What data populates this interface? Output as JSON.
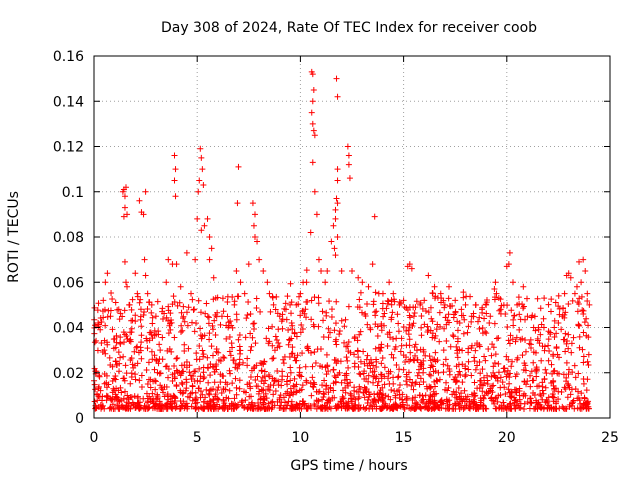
{
  "chart_data": {
    "type": "scatter",
    "title": "Day 308 of 2024, Rate Of TEC Index for receiver coob",
    "xlabel": "GPS time / hours",
    "ylabel": "ROTI / TECUs",
    "xlim": [
      0,
      25
    ],
    "ylim": [
      0,
      0.16
    ],
    "xticks": [
      0,
      5,
      10,
      15,
      20,
      25
    ],
    "xtick_labels": [
      "0",
      "5",
      "10",
      "15",
      "20",
      "25"
    ],
    "yticks": [
      0,
      0.02,
      0.04,
      0.06,
      0.08,
      0.1,
      0.12,
      0.14,
      0.16
    ],
    "ytick_labels": [
      "0",
      "0.02",
      "0.04",
      "0.06",
      "0.08",
      "0.1",
      "0.12",
      "0.14",
      "0.16"
    ],
    "grid": true,
    "marker": "plus",
    "color": "#ff0000",
    "series": [
      {
        "name": "ROTI",
        "points": [
          [
            0.05,
            0.041
          ],
          [
            0.2,
            0.042
          ],
          [
            0.3,
            0.039
          ],
          [
            0.45,
            0.052
          ],
          [
            0.55,
            0.06
          ],
          [
            0.65,
            0.064
          ],
          [
            0.5,
            0.03
          ],
          [
            0.8,
            0.045
          ],
          [
            1.0,
            0.035
          ],
          [
            1.2,
            0.048
          ],
          [
            1.4,
            0.1
          ],
          [
            1.45,
            0.101
          ],
          [
            1.5,
            0.098
          ],
          [
            1.55,
            0.102
          ],
          [
            1.5,
            0.093
          ],
          [
            1.45,
            0.089
          ],
          [
            1.6,
            0.09
          ],
          [
            1.5,
            0.069
          ],
          [
            1.55,
            0.06
          ],
          [
            1.6,
            0.058
          ],
          [
            1.7,
            0.05
          ],
          [
            1.8,
            0.043
          ],
          [
            2.0,
            0.064
          ],
          [
            2.1,
            0.055
          ],
          [
            2.2,
            0.096
          ],
          [
            2.3,
            0.091
          ],
          [
            2.4,
            0.09
          ],
          [
            2.5,
            0.1
          ],
          [
            2.45,
            0.07
          ],
          [
            2.5,
            0.063
          ],
          [
            2.6,
            0.055
          ],
          [
            2.8,
            0.05
          ],
          [
            3.0,
            0.045
          ],
          [
            3.3,
            0.047
          ],
          [
            3.5,
            0.06
          ],
          [
            3.6,
            0.07
          ],
          [
            3.8,
            0.068
          ],
          [
            3.9,
            0.116
          ],
          [
            3.95,
            0.11
          ],
          [
            3.9,
            0.105
          ],
          [
            3.95,
            0.098
          ],
          [
            4.0,
            0.068
          ],
          [
            4.2,
            0.058
          ],
          [
            4.5,
            0.073
          ],
          [
            4.7,
            0.055
          ],
          [
            4.9,
            0.07
          ],
          [
            5.0,
            0.088
          ],
          [
            5.05,
            0.1
          ],
          [
            5.1,
            0.105
          ],
          [
            5.15,
            0.119
          ],
          [
            5.2,
            0.115
          ],
          [
            5.25,
            0.11
          ],
          [
            5.3,
            0.103
          ],
          [
            5.2,
            0.083
          ],
          [
            5.35,
            0.085
          ],
          [
            5.5,
            0.088
          ],
          [
            5.6,
            0.08
          ],
          [
            5.7,
            0.075
          ],
          [
            5.6,
            0.07
          ],
          [
            5.8,
            0.062
          ],
          [
            5.9,
            0.053
          ],
          [
            6.2,
            0.045
          ],
          [
            6.5,
            0.04
          ],
          [
            6.8,
            0.05
          ],
          [
            6.9,
            0.065
          ],
          [
            6.95,
            0.095
          ],
          [
            7.0,
            0.111
          ],
          [
            7.1,
            0.06
          ],
          [
            7.3,
            0.055
          ],
          [
            7.5,
            0.068
          ],
          [
            7.7,
            0.095
          ],
          [
            7.8,
            0.09
          ],
          [
            7.75,
            0.085
          ],
          [
            7.8,
            0.08
          ],
          [
            7.9,
            0.078
          ],
          [
            8.0,
            0.07
          ],
          [
            8.2,
            0.065
          ],
          [
            8.4,
            0.06
          ],
          [
            8.5,
            0.055
          ],
          [
            8.7,
            0.05
          ],
          [
            9.0,
            0.045
          ],
          [
            9.3,
            0.048
          ],
          [
            9.5,
            0.05
          ],
          [
            9.8,
            0.05
          ],
          [
            10.0,
            0.055
          ],
          [
            10.3,
            0.06
          ],
          [
            10.5,
            0.082
          ],
          [
            10.55,
            0.153
          ],
          [
            10.6,
            0.152
          ],
          [
            10.65,
            0.145
          ],
          [
            10.6,
            0.14
          ],
          [
            10.55,
            0.135
          ],
          [
            10.6,
            0.13
          ],
          [
            10.65,
            0.127
          ],
          [
            10.7,
            0.125
          ],
          [
            10.6,
            0.113
          ],
          [
            10.7,
            0.1
          ],
          [
            10.8,
            0.09
          ],
          [
            10.9,
            0.07
          ],
          [
            11.0,
            0.065
          ],
          [
            11.2,
            0.06
          ],
          [
            11.3,
            0.065
          ],
          [
            11.5,
            0.078
          ],
          [
            11.6,
            0.085
          ],
          [
            11.7,
            0.092
          ],
          [
            11.75,
            0.097
          ],
          [
            11.8,
            0.095
          ],
          [
            11.7,
            0.088
          ],
          [
            11.8,
            0.08
          ],
          [
            11.65,
            0.075
          ],
          [
            11.7,
            0.072
          ],
          [
            11.75,
            0.15
          ],
          [
            11.8,
            0.142
          ],
          [
            11.8,
            0.11
          ],
          [
            11.8,
            0.105
          ],
          [
            12.0,
            0.065
          ],
          [
            12.3,
            0.12
          ],
          [
            12.35,
            0.116
          ],
          [
            12.35,
            0.112
          ],
          [
            12.4,
            0.106
          ],
          [
            12.5,
            0.065
          ],
          [
            12.8,
            0.062
          ],
          [
            13.0,
            0.06
          ],
          [
            13.3,
            0.058
          ],
          [
            13.5,
            0.068
          ],
          [
            13.6,
            0.089
          ],
          [
            13.8,
            0.055
          ],
          [
            14.0,
            0.055
          ],
          [
            14.3,
            0.06
          ],
          [
            14.5,
            0.055
          ],
          [
            14.8,
            0.05
          ],
          [
            15.0,
            0.052
          ],
          [
            15.2,
            0.067
          ],
          [
            15.3,
            0.068
          ],
          [
            15.4,
            0.066
          ],
          [
            15.5,
            0.045
          ],
          [
            15.8,
            0.05
          ],
          [
            16.0,
            0.052
          ],
          [
            16.2,
            0.063
          ],
          [
            16.5,
            0.058
          ],
          [
            16.8,
            0.055
          ],
          [
            17.0,
            0.05
          ],
          [
            17.2,
            0.058
          ],
          [
            17.5,
            0.052
          ],
          [
            17.8,
            0.048
          ],
          [
            18.0,
            0.05
          ],
          [
            18.3,
            0.045
          ],
          [
            18.5,
            0.05
          ],
          [
            18.8,
            0.048
          ],
          [
            19.0,
            0.05
          ],
          [
            19.2,
            0.045
          ],
          [
            19.4,
            0.057
          ],
          [
            19.45,
            0.06
          ],
          [
            19.5,
            0.055
          ],
          [
            19.7,
            0.048
          ],
          [
            20.0,
            0.067
          ],
          [
            20.1,
            0.068
          ],
          [
            20.15,
            0.073
          ],
          [
            20.3,
            0.06
          ],
          [
            20.5,
            0.05
          ],
          [
            20.8,
            0.058
          ],
          [
            21.0,
            0.045
          ],
          [
            21.3,
            0.04
          ],
          [
            21.5,
            0.035
          ],
          [
            21.8,
            0.04
          ],
          [
            22.0,
            0.032
          ],
          [
            22.3,
            0.04
          ],
          [
            22.5,
            0.042
          ],
          [
            22.7,
            0.045
          ],
          [
            22.8,
            0.055
          ],
          [
            22.9,
            0.063
          ],
          [
            23.0,
            0.064
          ],
          [
            23.1,
            0.062
          ],
          [
            23.3,
            0.055
          ],
          [
            23.4,
            0.058
          ],
          [
            23.5,
            0.069
          ],
          [
            23.6,
            0.06
          ],
          [
            23.7,
            0.07
          ],
          [
            23.8,
            0.065
          ],
          [
            23.9,
            0.055
          ],
          [
            24.0,
            0.05
          ]
        ]
      }
    ]
  }
}
